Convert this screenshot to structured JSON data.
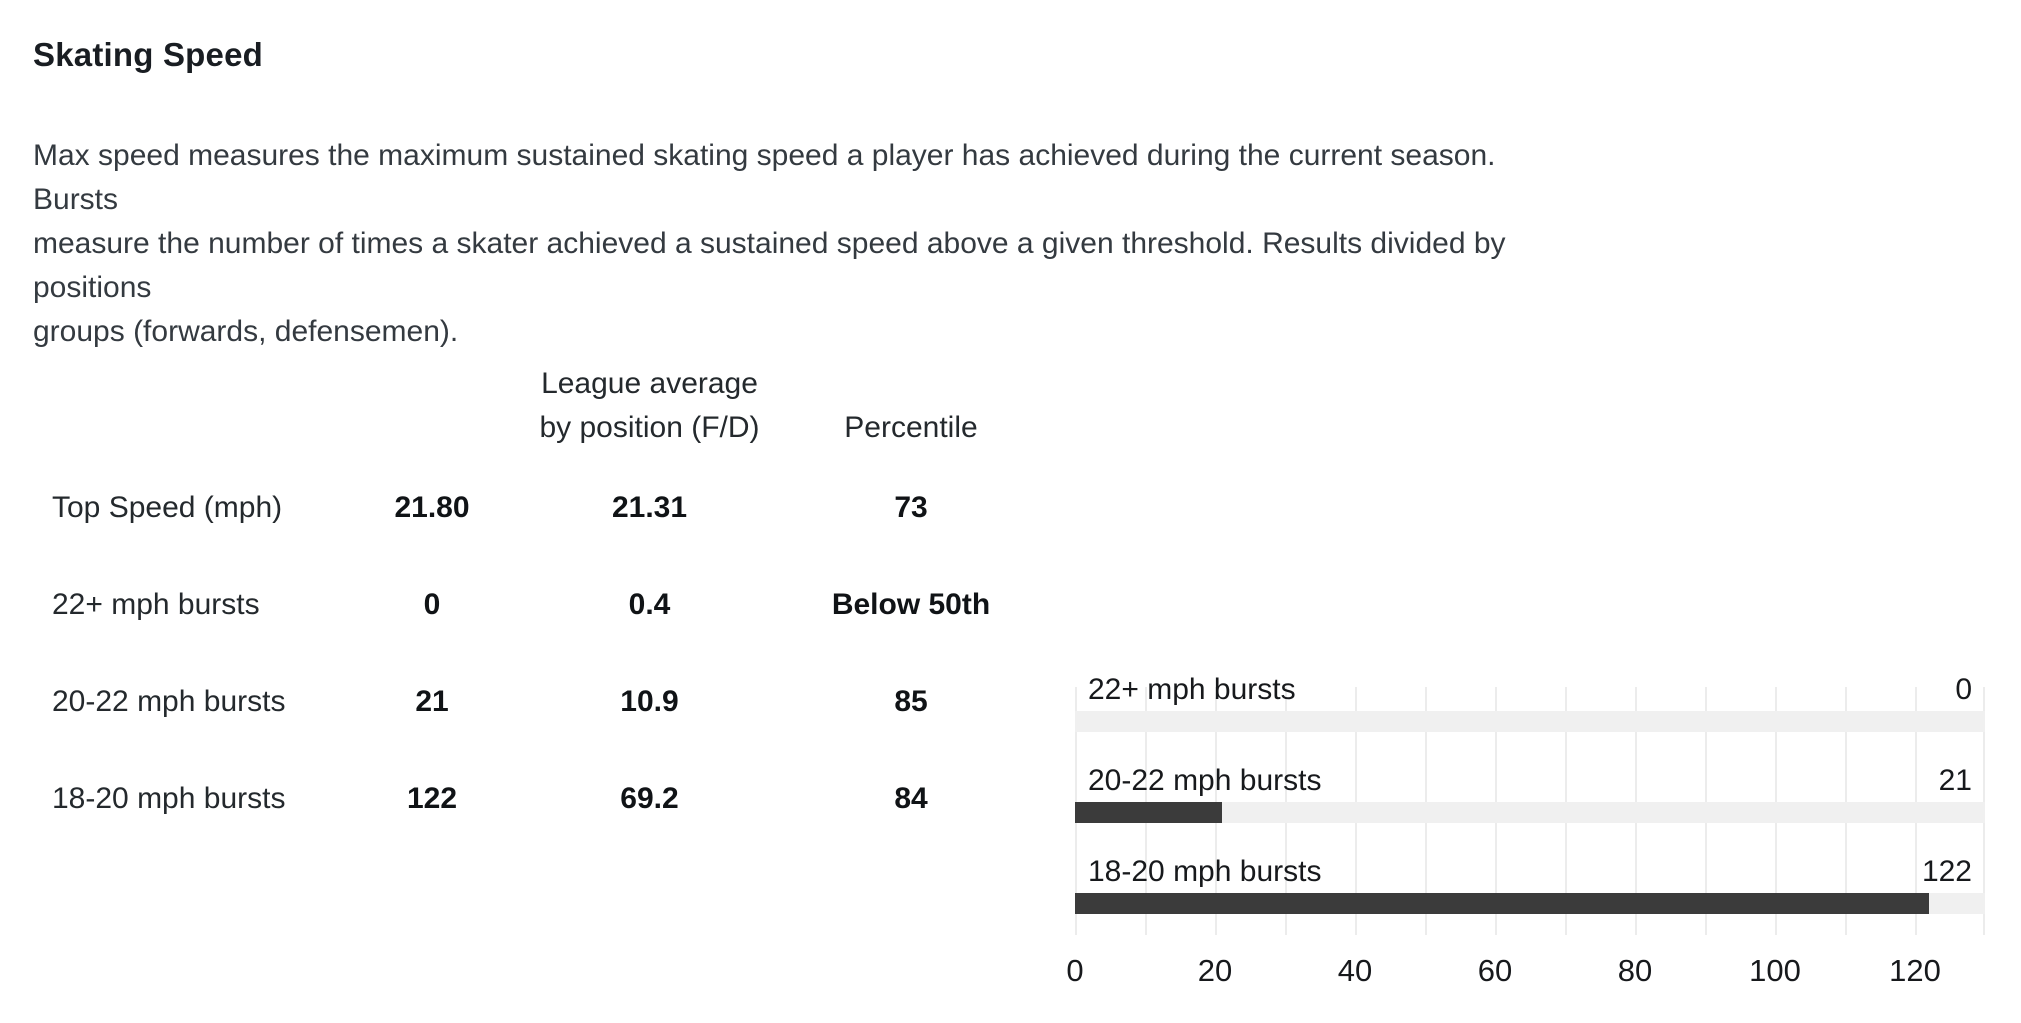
{
  "section": {
    "title": "Skating Speed",
    "description_lines": [
      "Max speed measures the maximum sustained skating speed a player has achieved during the current season. Bursts",
      "measure the number of times a skater achieved a sustained speed above a given threshold. Results divided by positions",
      "groups (forwards, defensemen)."
    ]
  },
  "table": {
    "headers": {
      "league_avg_line1": "League average",
      "league_avg_line2": "by position (F/D)",
      "percentile": "Percentile"
    },
    "rows": [
      {
        "label": "Top Speed (mph)",
        "value": "21.80",
        "league_avg": "21.31",
        "percentile": "73"
      },
      {
        "label": "22+ mph bursts",
        "value": "0",
        "league_avg": "0.4",
        "percentile": "Below 50th"
      },
      {
        "label": "20-22 mph bursts",
        "value": "21",
        "league_avg": "10.9",
        "percentile": "85"
      },
      {
        "label": "18-20 mph bursts",
        "value": "122",
        "league_avg": "69.2",
        "percentile": "84"
      }
    ]
  },
  "chart_data": {
    "type": "bar",
    "orientation": "horizontal",
    "categories": [
      "22+ mph bursts",
      "20-22 mph bursts",
      "18-20 mph bursts"
    ],
    "values": [
      0,
      21,
      122
    ],
    "xlim": [
      0,
      130
    ],
    "xticks": [
      0,
      20,
      40,
      60,
      80,
      100,
      120
    ],
    "gridline_interval": 10,
    "grid": "vertical-only",
    "legend": "none",
    "bar_color": "#3b3b3b",
    "track_color": "#f0f0f0",
    "gridline_color": "#ececec"
  }
}
